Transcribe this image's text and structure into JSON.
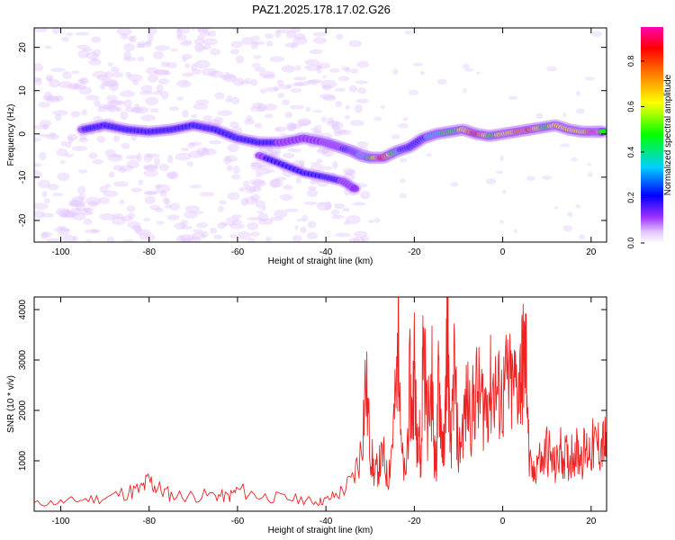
{
  "title": "PAZ1.2025.178.17.02.G26",
  "chart_data": [
    {
      "type": "heatmap",
      "xlabel": "Height of straight line (km)",
      "ylabel": "Frequency (Hz)",
      "xlim": [
        -106,
        23.5
      ],
      "ylim": [
        -25,
        24.5
      ],
      "xticks": [
        -100,
        -80,
        -60,
        -40,
        -20,
        0,
        20
      ],
      "yticks": [
        -20,
        -10,
        0,
        10,
        20
      ],
      "colorbar": {
        "label": "Normalized spectral amplitude",
        "range": [
          0,
          0.95
        ],
        "ticks": [
          0.0,
          0.2,
          0.4,
          0.6,
          0.8
        ],
        "colormap": [
          "#ffffff",
          "#e4c8ff",
          "#9b30ff",
          "#0000ff",
          "#00cfff",
          "#00ff00",
          "#ffff00",
          "#ff7f00",
          "#ff0000",
          "#ff00b0"
        ]
      },
      "ridge": {
        "x": [
          -95,
          -90,
          -85,
          -80,
          -75,
          -70,
          -65,
          -60,
          -55,
          -50,
          -45,
          -40,
          -37,
          -34,
          -32,
          -30,
          -27,
          -24,
          -21,
          -18,
          -15,
          -12,
          -9,
          -6,
          -3,
          0,
          3,
          6,
          9,
          12,
          15,
          18,
          21,
          23
        ],
        "y": [
          1,
          2,
          1,
          0.5,
          1,
          2,
          1,
          -1,
          -2,
          -2,
          -1,
          -2,
          -3,
          -4,
          -5,
          -5.5,
          -5.5,
          -4,
          -3,
          -1,
          0,
          0.5,
          1,
          0,
          -0.5,
          0,
          0.5,
          1,
          1.5,
          2,
          1,
          0.5,
          0.5,
          0.5
        ],
        "peak_amplitude": [
          0.25,
          0.35,
          0.3,
          0.3,
          0.3,
          0.35,
          0.3,
          0.3,
          0.3,
          0.25,
          0.25,
          0.25,
          0.25,
          0.3,
          0.4,
          0.5,
          0.85,
          0.4,
          0.3,
          0.35,
          0.45,
          0.5,
          0.6,
          0.85,
          0.55,
          0.6,
          0.7,
          0.8,
          0.55,
          0.6,
          0.65,
          0.6,
          0.85,
          0.5
        ]
      },
      "lower_branch": {
        "x": [
          -55,
          -50,
          -45,
          -40,
          -36,
          -33
        ],
        "y": [
          -5,
          -7,
          -9,
          -10,
          -11,
          -13
        ],
        "peak_amplitude": [
          0.25,
          0.3,
          0.3,
          0.3,
          0.25,
          0.2
        ]
      }
    },
    {
      "type": "line",
      "xlabel": "Height of straight line (km)",
      "ylabel": "SNR (10 * v/v)",
      "xlim": [
        -106,
        23.5
      ],
      "ylim": [
        0,
        4250
      ],
      "xticks": [
        -100,
        -80,
        -60,
        -40,
        -20,
        0,
        20
      ],
      "yticks": [
        1000,
        2000,
        3000,
        4000
      ],
      "color": "#ee2222",
      "series": [
        {
          "x": [
            -106,
            -100,
            -95,
            -90,
            -85,
            -82,
            -80,
            -78,
            -75,
            -70,
            -65,
            -62,
            -60,
            -55,
            -50,
            -45,
            -42,
            -40,
            -37,
            -34,
            -32,
            -31,
            -30,
            -29,
            -28,
            -27,
            -26,
            -25,
            -24,
            -23.5,
            -23,
            -22,
            -21,
            -20.5,
            -20,
            -19.5,
            -19,
            -18.5,
            -18,
            -17,
            -16,
            -15.5,
            -15,
            -14.5,
            -14,
            -13.5,
            -13,
            -12.5,
            -12,
            -11.5,
            -11,
            -10,
            -9,
            -8,
            -7,
            -6,
            -5,
            -4,
            -3,
            -2,
            -1,
            0,
            1,
            2,
            3,
            4,
            4.5,
            5,
            5.5,
            6,
            7,
            8,
            9,
            10,
            11,
            12,
            13,
            14,
            15,
            16,
            17,
            18,
            19,
            20,
            21,
            22,
            23,
            23.5
          ],
          "y": [
            150,
            180,
            230,
            260,
            380,
            420,
            600,
            450,
            320,
            300,
            320,
            280,
            420,
            300,
            260,
            230,
            180,
            220,
            350,
            600,
            1200,
            2600,
            1300,
            700,
            900,
            1100,
            600,
            1400,
            2400,
            4100,
            1200,
            600,
            2500,
            1800,
            3000,
            1500,
            1900,
            700,
            3600,
            1700,
            2600,
            1200,
            900,
            2700,
            1900,
            1100,
            1800,
            4150,
            1400,
            1500,
            2900,
            1100,
            1700,
            2200,
            1900,
            2400,
            2200,
            2100,
            2400,
            2500,
            2300,
            2200,
            2600,
            2400,
            2500,
            2700,
            2900,
            3050,
            2800,
            900,
            700,
            1100,
            900,
            1300,
            1000,
            850,
            1200,
            1100,
            1000,
            1250,
            1150,
            1150,
            1200,
            1250,
            1300,
            1300,
            1350,
            1250
          ]
        }
      ]
    }
  ]
}
